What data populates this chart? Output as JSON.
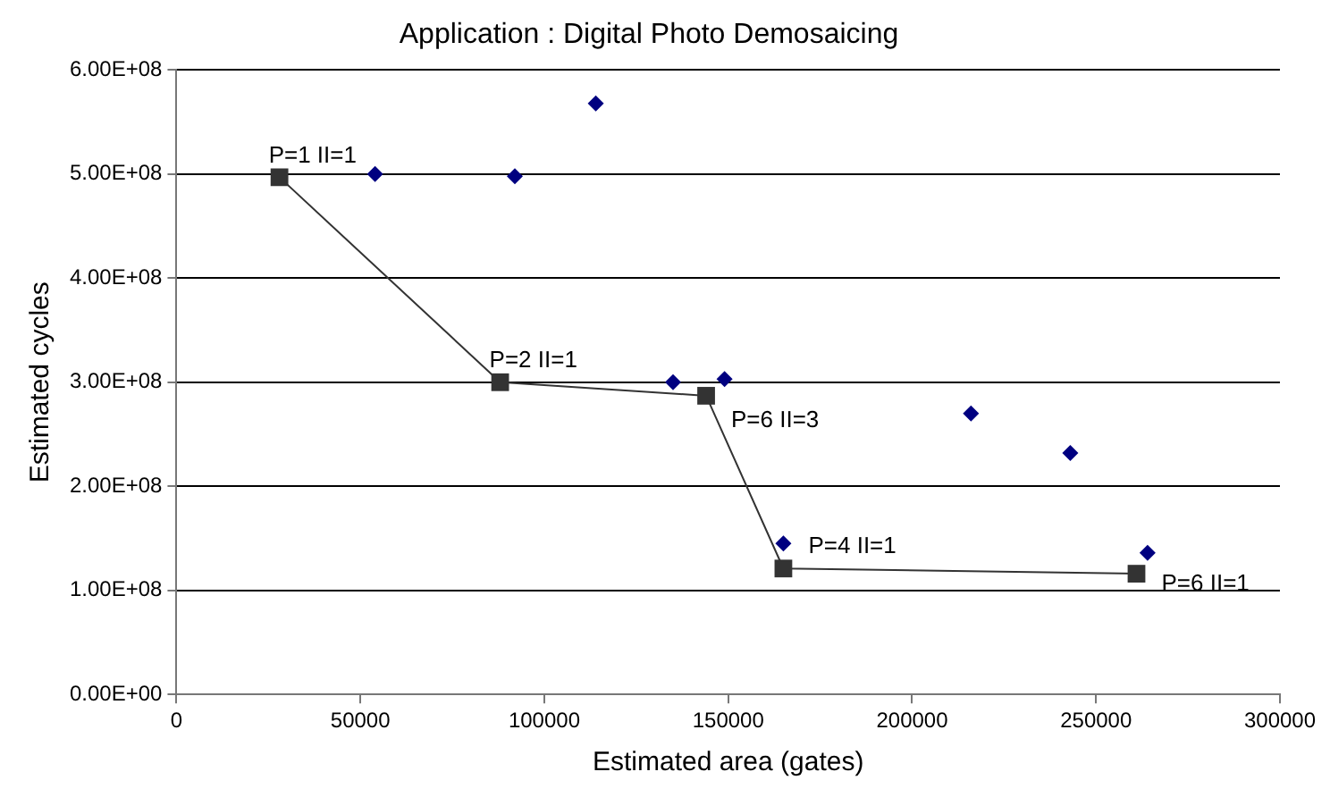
{
  "chart_data": {
    "type": "scatter",
    "title": "Application : Digital Photo Demosaicing",
    "xlabel": "Estimated area (gates)",
    "ylabel": "Estimated cycles",
    "xlim": [
      0,
      300000
    ],
    "xticks": [
      0,
      50000,
      100000,
      150000,
      200000,
      250000,
      300000
    ],
    "ylim": [
      0,
      600000000
    ],
    "yticks": [
      {
        "value": 0,
        "label": "0.00E+00"
      },
      {
        "value": 100000000,
        "label": "1.00E+08"
      },
      {
        "value": 200000000,
        "label": "2.00E+08"
      },
      {
        "value": 300000000,
        "label": "3.00E+08"
      },
      {
        "value": 400000000,
        "label": "4.00E+08"
      },
      {
        "value": 500000000,
        "label": "5.00E+08"
      },
      {
        "value": 600000000,
        "label": "6.00E+08"
      }
    ],
    "grid": "y",
    "legend": false,
    "series": [
      {
        "type": "scatter",
        "marker": "diamond",
        "color": "#000080",
        "x": [
          54000,
          92000,
          114000,
          135000,
          149000,
          165000,
          216000,
          243000,
          264000
        ],
        "values": [
          500000000,
          498000000,
          568000000,
          300000000,
          303000000,
          145000000,
          270000000,
          232000000,
          136000000
        ]
      },
      {
        "type": "line",
        "marker": "square",
        "color": "#333333",
        "x": [
          28000,
          88000,
          144000,
          165000,
          261000
        ],
        "values": [
          497000000,
          300000000,
          287000000,
          121000000,
          116000000
        ]
      }
    ],
    "annotations": [
      {
        "text": "P=1 II=1",
        "x": 28000,
        "y": 497000000
      },
      {
        "text": "P=2 II=1",
        "x": 88000,
        "y": 300000000
      },
      {
        "text": "P=6 II=3",
        "x": 144000,
        "y": 287000000
      },
      {
        "text": "P=4 II=1",
        "x": 165000,
        "y": 121000000
      },
      {
        "text": "P=6 II=1",
        "x": 261000,
        "y": 116000000
      }
    ]
  }
}
